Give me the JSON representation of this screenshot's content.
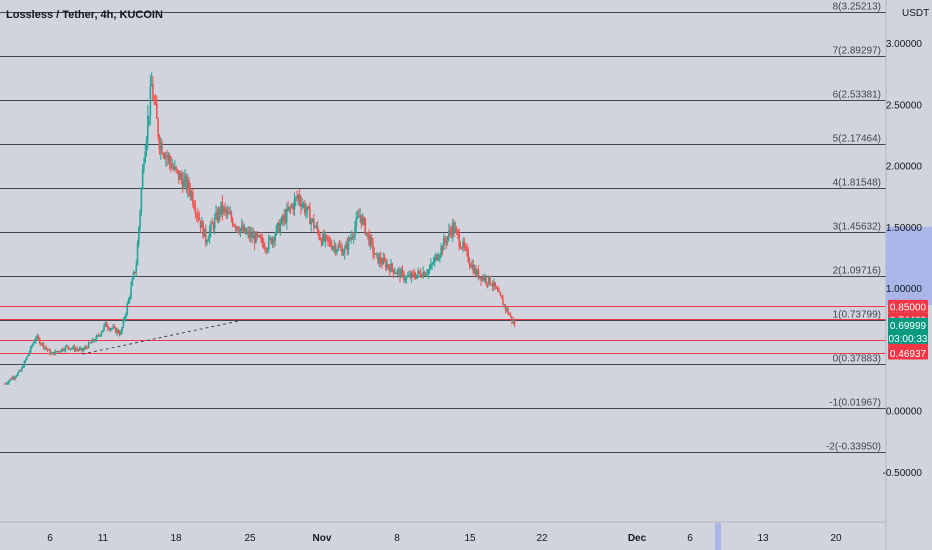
{
  "header": {
    "title": "Lossless / Tether, 4h, KUCOIN"
  },
  "price_axis": {
    "currency_label": "USDT",
    "ticks": [
      {
        "label": "3.00000",
        "value": 3.0
      },
      {
        "label": "2.50000",
        "value": 2.5
      },
      {
        "label": "2.00000",
        "value": 2.0
      },
      {
        "label": "1.50000",
        "value": 1.5
      },
      {
        "label": "1.00000",
        "value": 1.0
      },
      {
        "label": "0.00000",
        "value": 0.0
      },
      {
        "label": "-0.50000",
        "value": -0.5
      }
    ]
  },
  "time_axis": {
    "ticks": [
      {
        "label": "6",
        "bold": false
      },
      {
        "label": "11",
        "bold": false
      },
      {
        "label": "18",
        "bold": false
      },
      {
        "label": "25",
        "bold": false
      },
      {
        "label": "Nov",
        "bold": true
      },
      {
        "label": "8",
        "bold": false
      },
      {
        "label": "15",
        "bold": false
      },
      {
        "label": "22",
        "bold": false
      },
      {
        "label": "Dec",
        "bold": true
      },
      {
        "label": "6",
        "bold": false
      },
      {
        "label": "13",
        "bold": false
      },
      {
        "label": "20",
        "bold": false
      }
    ]
  },
  "colors": {
    "background": "#d1d4dc",
    "up_candle": "#26a69a",
    "down_candle": "#ef5350",
    "fib_line": "#434651",
    "red_level": "#f23645",
    "current_price": "#089981",
    "axis_highlight": "#aab6e8"
  },
  "chart_data": {
    "type": "candlestick",
    "title": "Lossless / Tether, 4h, KUCOIN",
    "ylabel": "USDT",
    "ylim": [
      -0.5,
      3.25
    ],
    "grid": false,
    "fib_levels": [
      {
        "label": "8(3.25213)",
        "value": 3.25213
      },
      {
        "label": "7(2.89297)",
        "value": 2.89297
      },
      {
        "label": "6(2.53381)",
        "value": 2.53381
      },
      {
        "label": "5(2.17464)",
        "value": 2.17464
      },
      {
        "label": "4(1.81548)",
        "value": 1.81548
      },
      {
        "label": "3(1.45632)",
        "value": 1.45632
      },
      {
        "label": "2(1.09716)",
        "value": 1.09716
      },
      {
        "label": "1(0.73799)",
        "value": 0.73799
      },
      {
        "label": "0(0.37883)",
        "value": 0.37883
      },
      {
        "label": "-1(0.01967)",
        "value": 0.01967
      },
      {
        "label": "-2(-0.33950)",
        "value": -0.3395
      }
    ],
    "horizontal_levels": [
      {
        "label": "0.85000",
        "value": 0.85
      },
      {
        "label": "0.74489",
        "value": 0.74489
      },
      {
        "label": "0.57448",
        "value": 0.57448
      },
      {
        "label": "0.46937",
        "value": 0.46937
      }
    ],
    "current_price": {
      "label": "0.69999",
      "value": 0.69999,
      "countdown": "03:00:33"
    },
    "price_path": [
      {
        "date": "Oct 1",
        "close": 0.22
      },
      {
        "date": "Oct 3",
        "close": 0.32
      },
      {
        "date": "Oct 5",
        "close": 0.6
      },
      {
        "date": "Oct 7",
        "close": 0.46
      },
      {
        "date": "Oct 9",
        "close": 0.52
      },
      {
        "date": "Oct 11",
        "close": 0.49
      },
      {
        "date": "Oct 13",
        "close": 0.6
      },
      {
        "date": "Oct 14",
        "close": 0.7
      },
      {
        "date": "Oct 16",
        "close": 0.63
      },
      {
        "date": "Oct 17",
        "close": 0.9
      },
      {
        "date": "Oct 18",
        "close": 1.2
      },
      {
        "date": "Oct 19",
        "close": 2.1
      },
      {
        "date": "Oct 20",
        "close": 2.65
      },
      {
        "date": "Oct 21",
        "close": 2.2
      },
      {
        "date": "Oct 23",
        "close": 1.95
      },
      {
        "date": "Oct 25",
        "close": 1.8
      },
      {
        "date": "Oct 27",
        "close": 1.4
      },
      {
        "date": "Oct 29",
        "close": 1.65
      },
      {
        "date": "Nov 1",
        "close": 1.45
      },
      {
        "date": "Nov 4",
        "close": 1.35
      },
      {
        "date": "Nov 6",
        "close": 1.55
      },
      {
        "date": "Nov 8",
        "close": 1.75
      },
      {
        "date": "Nov 11",
        "close": 1.4
      },
      {
        "date": "Nov 14",
        "close": 1.3
      },
      {
        "date": "Nov 16",
        "close": 1.6
      },
      {
        "date": "Nov 18",
        "close": 1.25
      },
      {
        "date": "Nov 22",
        "close": 1.08
      },
      {
        "date": "Nov 25",
        "close": 1.15
      },
      {
        "date": "Nov 28",
        "close": 1.5
      },
      {
        "date": "Dec 1",
        "close": 1.12
      },
      {
        "date": "Dec 3",
        "close": 1.05
      },
      {
        "date": "Dec 5",
        "close": 0.82
      },
      {
        "date": "Dec 6",
        "close": 0.7
      }
    ],
    "trendline": [
      {
        "date": "Oct 11",
        "value": 0.46
      },
      {
        "date": "Nov 1",
        "value": 0.74
      }
    ]
  }
}
